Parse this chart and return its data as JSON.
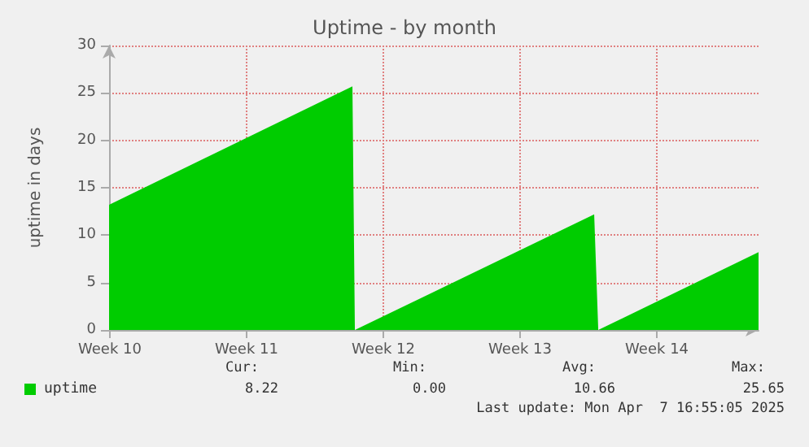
{
  "chart_data": {
    "type": "area",
    "title": "Uptime - by month",
    "ylabel": "uptime in days",
    "x": [
      "2025-03-05T11:00",
      "2025-03-17T22:00",
      "2025-03-18T01:00",
      "2025-03-30T07:00",
      "2025-03-30T12:00",
      "2025-04-07T16:55"
    ],
    "series": [
      {
        "name": "uptime",
        "color": "#00cc00",
        "values": [
          13.2,
          25.7,
          0,
          12.2,
          0,
          8.2
        ]
      }
    ],
    "xlim": [
      "2025-03-05T11:00",
      "2025-04-07T16:55"
    ],
    "xticks": [
      {
        "value": "2025-03-05T12:00",
        "label": "Week 10"
      },
      {
        "value": "2025-03-12T12:00",
        "label": "Week 11"
      },
      {
        "value": "2025-03-19T12:00",
        "label": "Week 12"
      },
      {
        "value": "2025-03-26T12:00",
        "label": "Week 13"
      },
      {
        "value": "2025-04-02T12:00",
        "label": "Week 14"
      }
    ],
    "ylim": [
      0,
      30
    ],
    "yticks": [
      0,
      5,
      10,
      15,
      20,
      25,
      30
    ],
    "grid": true,
    "legend": "bottom left",
    "annotations": [
      "Cur:",
      "Min:",
      "Avg:",
      "Max:",
      "8.22",
      "0.00",
      "10.66",
      "25.65",
      "Last update: Mon Apr  7 16:55:05 2025"
    ]
  }
}
